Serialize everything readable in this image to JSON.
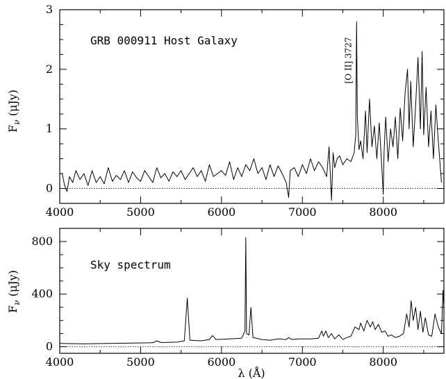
{
  "chart_data": [
    {
      "type": "line",
      "annotation": "GRB 000911 Host Galaxy",
      "ylabel": "F_ν (μJy)",
      "ylabel_parts": {
        "main": "F",
        "sub": "ν",
        "unit": " (μJy)"
      },
      "xlim": [
        4000,
        8750
      ],
      "ylim": [
        -0.25,
        3
      ],
      "xticks": [
        4000,
        5000,
        6000,
        7000,
        8000
      ],
      "yticks": [
        0,
        1,
        2,
        3
      ],
      "zero_line": true,
      "line_label": {
        "text": "[O II] 3727",
        "x": 7670,
        "y": 2.15
      },
      "series": [
        {
          "x": [
            4030,
            4060,
            4090,
            4120,
            4160,
            4200,
            4250,
            4300,
            4350,
            4400,
            4450,
            4500,
            4550,
            4600,
            4650,
            4700,
            4750,
            4800,
            4850,
            4900,
            4950,
            5000,
            5050,
            5100,
            5150,
            5200,
            5250,
            5300,
            5350,
            5400,
            5450,
            5500,
            5550,
            5600,
            5650,
            5700,
            5750,
            5800,
            5850,
            5900,
            5950,
            6000,
            6050,
            6100,
            6150,
            6200,
            6250,
            6300,
            6350,
            6400,
            6450,
            6500,
            6550,
            6600,
            6650,
            6700,
            6750,
            6800,
            6830,
            6850,
            6900,
            6950,
            7000,
            7050,
            7100,
            7150,
            7200,
            7250,
            7300,
            7330,
            7360,
            7380,
            7400,
            7430,
            7460,
            7500,
            7550,
            7600,
            7640,
            7660,
            7670,
            7680,
            7700,
            7720,
            7750,
            7780,
            7800,
            7830,
            7860,
            7890,
            7920,
            7950,
            7980,
            8000,
            8010,
            8030,
            8060,
            8090,
            8120,
            8150,
            8180,
            8210,
            8240,
            8270,
            8300,
            8320,
            8340,
            8370,
            8400,
            8430,
            8460,
            8480,
            8500,
            8530,
            8560,
            8590,
            8620,
            8650,
            8680,
            8720
          ],
          "y": [
            0.25,
            0.05,
            -0.05,
            0.2,
            0.1,
            0.3,
            0.15,
            0.25,
            0.05,
            0.3,
            0.1,
            0.2,
            0.08,
            0.35,
            0.12,
            0.22,
            0.15,
            0.3,
            0.1,
            0.28,
            0.18,
            0.12,
            0.3,
            0.2,
            0.1,
            0.35,
            0.18,
            0.25,
            0.12,
            0.28,
            0.2,
            0.3,
            0.15,
            0.25,
            0.35,
            0.2,
            0.3,
            0.12,
            0.4,
            0.2,
            0.25,
            0.3,
            0.22,
            0.45,
            0.15,
            0.35,
            0.2,
            0.4,
            0.3,
            0.5,
            0.25,
            0.35,
            0.15,
            0.4,
            0.2,
            0.38,
            0.25,
            0.1,
            -0.15,
            0.3,
            0.35,
            0.2,
            0.4,
            0.25,
            0.5,
            0.3,
            0.45,
            0.35,
            0.2,
            0.7,
            -0.2,
            0.6,
            0.35,
            0.5,
            0.55,
            0.4,
            0.5,
            0.45,
            0.6,
            0.9,
            2.8,
            1.2,
            0.65,
            0.8,
            0.5,
            1.3,
            0.6,
            1.5,
            0.7,
            1.05,
            0.5,
            1.1,
            0.4,
            -0.1,
            0.6,
            1.2,
            0.45,
            1.0,
            0.7,
            1.2,
            0.5,
            1.35,
            0.8,
            1.6,
            2.0,
            1.0,
            1.8,
            0.7,
            1.4,
            2.2,
            1.0,
            2.3,
            0.9,
            1.7,
            0.7,
            1.3,
            0.5,
            1.4,
            0.8,
            0.1
          ]
        }
      ]
    },
    {
      "type": "line",
      "annotation": "Sky spectrum",
      "xlabel": "λ (Å)",
      "ylabel": "F_ν (μJy)",
      "ylabel_parts": {
        "main": "F",
        "sub": "ν",
        "unit": " (μJy)"
      },
      "xlim": [
        4000,
        8750
      ],
      "ylim": [
        -50,
        900
      ],
      "xticks": [
        4000,
        5000,
        6000,
        7000,
        8000
      ],
      "yticks": [
        0,
        400,
        800
      ],
      "zero_line": true,
      "series": [
        {
          "x": [
            4000,
            4300,
            4600,
            4900,
            5150,
            5200,
            5250,
            5450,
            5540,
            5577,
            5610,
            5750,
            5850,
            5890,
            5930,
            6100,
            6250,
            6290,
            6300,
            6310,
            6340,
            6364,
            6390,
            6500,
            6600,
            6700,
            6800,
            6830,
            6870,
            6950,
            7100,
            7200,
            7240,
            7260,
            7290,
            7320,
            7360,
            7400,
            7450,
            7500,
            7550,
            7600,
            7650,
            7700,
            7720,
            7760,
            7800,
            7840,
            7870,
            7900,
            7940,
            7980,
            8020,
            8060,
            8100,
            8150,
            8200,
            8250,
            8290,
            8320,
            8345,
            8370,
            8400,
            8430,
            8460,
            8490,
            8520,
            8560,
            8600,
            8640,
            8680,
            8720,
            8740,
            8750
          ],
          "y": [
            25,
            22,
            25,
            28,
            30,
            45,
            32,
            35,
            45,
            370,
            50,
            45,
            55,
            85,
            55,
            60,
            65,
            120,
            830,
            100,
            90,
            300,
            70,
            55,
            50,
            60,
            55,
            70,
            55,
            60,
            60,
            65,
            120,
            80,
            120,
            70,
            100,
            60,
            90,
            55,
            70,
            80,
            150,
            130,
            180,
            120,
            200,
            150,
            190,
            130,
            170,
            110,
            120,
            80,
            90,
            70,
            80,
            100,
            250,
            150,
            350,
            200,
            300,
            130,
            270,
            110,
            220,
            90,
            80,
            250,
            150,
            100,
            430,
            300
          ]
        }
      ]
    }
  ]
}
